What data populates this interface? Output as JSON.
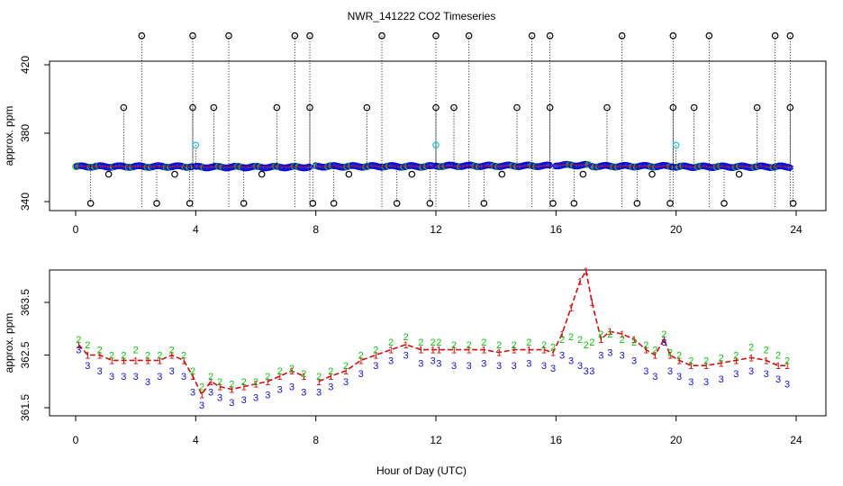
{
  "title": "NWR_141222  CO2 Timeseries",
  "xlabel": "Hour of Day (UTC)",
  "colors": {
    "s1": "#d01010",
    "s2": "#10c010",
    "s3": "#1010d0",
    "raw": "#000000",
    "cyan": "#20c8c8"
  },
  "chart_data": [
    {
      "type": "scatter",
      "title": "NWR_141222  CO2 Timeseries",
      "ylabel": "approx. ppm",
      "xlim": [
        0,
        24
      ],
      "ylim": [
        335,
        438
      ],
      "xticks": [
        0,
        4,
        8,
        12,
        16,
        20,
        24
      ],
      "yticks": [
        340,
        380,
        420
      ],
      "baseline_segments": [
        {
          "x0": 0.0,
          "x1": 3.9,
          "y": 360.5
        },
        {
          "x0": 4.0,
          "x1": 7.8,
          "y": 360.2
        },
        {
          "x0": 8.0,
          "x1": 11.9,
          "y": 360.6
        },
        {
          "x0": 12.0,
          "x1": 15.8,
          "y": 360.9
        },
        {
          "x0": 16.0,
          "x1": 17.1,
          "y": 361.3
        },
        {
          "x0": 17.2,
          "x1": 19.9,
          "y": 360.7
        },
        {
          "x0": 20.0,
          "x1": 23.8,
          "y": 360.4
        }
      ],
      "spikes_high": [
        2.2,
        3.9,
        5.1,
        7.3,
        7.8,
        10.2,
        12.0,
        13.1,
        15.2,
        15.8,
        18.2,
        19.9,
        21.1,
        23.3,
        23.8
      ],
      "spikes_mid": [
        1.6,
        3.9,
        4.6,
        6.7,
        7.8,
        9.7,
        12.0,
        12.6,
        14.7,
        15.8,
        17.7,
        19.9,
        20.6,
        22.7,
        23.8
      ],
      "spikes_low": [
        0.5,
        2.7,
        3.8,
        5.6,
        7.9,
        8.6,
        10.7,
        11.8,
        13.6,
        15.9,
        16.6,
        18.7,
        19.8,
        21.6,
        23.9
      ],
      "dips_small": [
        1.1,
        3.3,
        6.2,
        9.1,
        11.2,
        14.2,
        16.9,
        19.2,
        22.1
      ],
      "cyan_points": [
        {
          "x": 4.0,
          "y": 373
        },
        {
          "x": 12.0,
          "y": 373
        },
        {
          "x": 20.0,
          "y": 373
        }
      ]
    },
    {
      "type": "line",
      "ylabel": "approx. ppm",
      "xlim": [
        0,
        24
      ],
      "ylim": [
        361.4,
        364.2
      ],
      "xticks": [
        0,
        4,
        8,
        12,
        16,
        20,
        24
      ],
      "yticks": [
        361.5,
        362.5,
        363.5
      ],
      "x": [
        0.1,
        0.4,
        0.8,
        1.2,
        1.6,
        2.0,
        2.4,
        2.8,
        3.2,
        3.6,
        3.9,
        4.2,
        4.5,
        4.8,
        5.2,
        5.6,
        6.0,
        6.4,
        6.8,
        7.2,
        7.6,
        8.1,
        8.5,
        9.0,
        9.5,
        10.0,
        10.5,
        11.0,
        11.5,
        11.9,
        12.1,
        12.6,
        13.1,
        13.6,
        14.1,
        14.6,
        15.1,
        15.6,
        15.9,
        16.2,
        16.5,
        16.8,
        17.0,
        17.2,
        17.5,
        17.8,
        18.2,
        18.6,
        19.0,
        19.3,
        19.6,
        19.8,
        20.1,
        20.5,
        21.0,
        21.5,
        22.0,
        22.5,
        23.0,
        23.4,
        23.7
      ],
      "series": [
        {
          "name": "1",
          "values": [
            362.7,
            362.5,
            362.5,
            362.4,
            362.4,
            362.4,
            362.4,
            362.4,
            362.5,
            362.4,
            362.1,
            361.75,
            362.0,
            361.9,
            361.85,
            361.9,
            361.95,
            362.0,
            362.1,
            362.2,
            362.1,
            362.0,
            362.1,
            362.2,
            362.4,
            362.5,
            362.6,
            362.7,
            362.6,
            362.6,
            362.6,
            362.6,
            362.6,
            362.6,
            362.55,
            362.6,
            362.6,
            362.6,
            362.55,
            362.9,
            363.4,
            363.9,
            364.1,
            363.5,
            362.8,
            362.95,
            362.9,
            362.8,
            362.6,
            362.5,
            362.8,
            362.5,
            362.4,
            362.3,
            362.3,
            362.35,
            362.4,
            362.45,
            362.4,
            362.3,
            362.3
          ]
        },
        {
          "name": "2",
          "values": [
            362.8,
            362.7,
            362.6,
            362.5,
            362.5,
            362.6,
            362.5,
            362.5,
            362.6,
            362.5,
            362.2,
            361.9,
            362.1,
            362.0,
            361.95,
            362.0,
            362.0,
            362.1,
            362.2,
            362.25,
            362.15,
            362.1,
            362.2,
            362.3,
            362.5,
            362.6,
            362.75,
            362.85,
            362.75,
            362.75,
            362.75,
            362.7,
            362.7,
            362.75,
            362.7,
            362.7,
            362.75,
            362.7,
            362.65,
            362.8,
            362.85,
            362.8,
            362.7,
            362.75,
            362.9,
            362.9,
            362.8,
            362.75,
            362.7,
            362.6,
            362.9,
            362.55,
            362.5,
            362.4,
            362.4,
            362.45,
            362.5,
            362.65,
            362.6,
            362.5,
            362.4
          ]
        },
        {
          "name": "3",
          "values": [
            362.6,
            362.3,
            362.2,
            362.1,
            362.1,
            362.1,
            362.0,
            362.1,
            362.2,
            362.1,
            361.8,
            361.55,
            361.8,
            361.7,
            361.6,
            361.65,
            361.7,
            361.75,
            361.85,
            361.9,
            361.8,
            361.8,
            361.9,
            362.0,
            362.15,
            362.3,
            362.4,
            362.5,
            362.35,
            362.4,
            362.35,
            362.3,
            362.3,
            362.35,
            362.3,
            362.3,
            362.35,
            362.3,
            362.25,
            362.5,
            362.4,
            362.3,
            362.2,
            362.2,
            362.5,
            362.55,
            362.5,
            362.4,
            362.2,
            362.1,
            362.75,
            362.2,
            362.1,
            362.0,
            362.0,
            362.05,
            362.15,
            362.2,
            362.15,
            362.05,
            361.95
          ]
        }
      ]
    }
  ]
}
